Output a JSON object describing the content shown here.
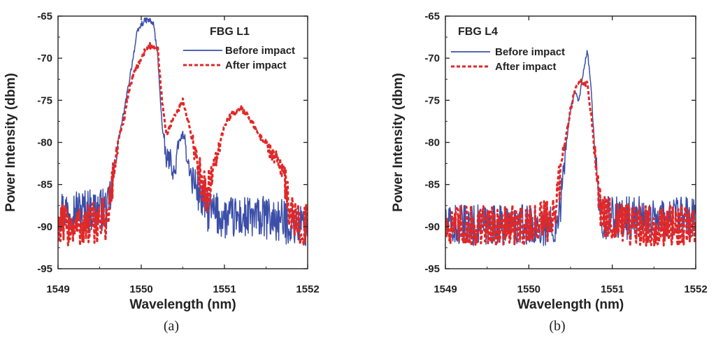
{
  "chart_data": [
    {
      "type": "line",
      "panel_label": "(a)",
      "legend_title": "FBG L1",
      "xlabel": "Wavelength (nm)",
      "ylabel": "Power Intensity (dbm)",
      "xlim": [
        1549,
        1552
      ],
      "ylim": [
        -95,
        -65
      ],
      "xticks": [
        1549,
        1550,
        1551,
        1552
      ],
      "yticks": [
        -65,
        -70,
        -75,
        -80,
        -85,
        -90,
        -95
      ],
      "series": [
        {
          "name": "Before impact",
          "color": "#3b4fa8",
          "style": "solid",
          "noise": "blue",
          "x": [
            1549.0,
            1549.3,
            1549.6,
            1549.65,
            1549.72,
            1549.8,
            1549.85,
            1549.9,
            1549.95,
            1550.0,
            1550.05,
            1550.1,
            1550.15,
            1550.2,
            1550.25,
            1550.3,
            1550.35,
            1550.4,
            1550.45,
            1550.5,
            1550.6,
            1550.7,
            1550.8,
            1551.0,
            1551.5,
            1552.0
          ],
          "y": [
            -88,
            -88,
            -88,
            -85,
            -80,
            -76,
            -73,
            -70,
            -67,
            -66,
            -65.5,
            -65.5,
            -66,
            -70,
            -78,
            -82,
            -82,
            -84,
            -80,
            -79,
            -84,
            -86,
            -88,
            -89,
            -89,
            -90
          ]
        },
        {
          "name": "After impact",
          "color": "#e02828",
          "style": "dashed",
          "noise": "red",
          "x": [
            1549.0,
            1549.3,
            1549.6,
            1549.65,
            1549.72,
            1549.8,
            1549.85,
            1549.9,
            1550.0,
            1550.05,
            1550.1,
            1550.2,
            1550.25,
            1550.3,
            1550.4,
            1550.5,
            1550.6,
            1550.7,
            1550.8,
            1550.9,
            1551.0,
            1551.1,
            1551.2,
            1551.3,
            1551.4,
            1551.5,
            1551.6,
            1551.7,
            1551.8,
            1552.0
          ],
          "y": [
            -90,
            -90,
            -89,
            -85,
            -80,
            -77,
            -74,
            -72,
            -70,
            -69,
            -68.5,
            -69,
            -75,
            -79,
            -77,
            -75,
            -79,
            -84,
            -86,
            -82,
            -78,
            -76.5,
            -76,
            -77,
            -79,
            -80,
            -82,
            -83,
            -89,
            -90
          ]
        }
      ]
    },
    {
      "type": "line",
      "panel_label": "(b)",
      "legend_title": "FBG L4",
      "xlabel": "Wavelength (nm)",
      "ylabel": "Power Intensity (dbm)",
      "xlim": [
        1549,
        1552
      ],
      "ylim": [
        -95,
        -65
      ],
      "xticks": [
        1549,
        1550,
        1551,
        1552
      ],
      "yticks": [
        -65,
        -70,
        -75,
        -80,
        -85,
        -90,
        -95
      ],
      "series": [
        {
          "name": "Before impact",
          "color": "#3b4fa8",
          "style": "solid",
          "noise": "blue",
          "x": [
            1549.0,
            1550.0,
            1550.3,
            1550.4,
            1550.45,
            1550.5,
            1550.55,
            1550.6,
            1550.65,
            1550.7,
            1550.75,
            1550.8,
            1550.85,
            1550.9,
            1551.2,
            1552.0
          ],
          "y": [
            -90,
            -90,
            -90,
            -86,
            -80,
            -76,
            -74,
            -75,
            -72,
            -69,
            -74,
            -83,
            -88,
            -89,
            -89,
            -89
          ]
        },
        {
          "name": "After impact",
          "color": "#e02828",
          "style": "dashed",
          "noise": "red",
          "x": [
            1549.0,
            1550.0,
            1550.3,
            1550.35,
            1550.4,
            1550.45,
            1550.5,
            1550.55,
            1550.6,
            1550.65,
            1550.7,
            1550.75,
            1550.8,
            1550.85,
            1550.9,
            1551.2,
            1552.0
          ],
          "y": [
            -90,
            -90,
            -89,
            -86,
            -82,
            -79,
            -76,
            -74,
            -72.5,
            -73,
            -73,
            -77,
            -82,
            -87,
            -89,
            -90,
            -90
          ]
        }
      ]
    }
  ]
}
